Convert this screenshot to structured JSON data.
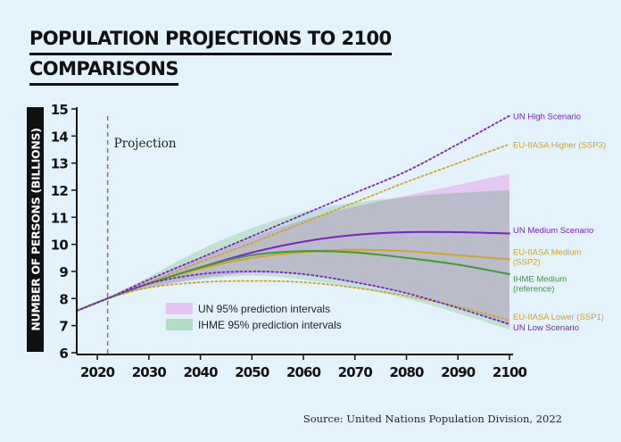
{
  "title_lines": [
    "POPULATION PROJECTIONS TO 2100",
    "COMPARISONS"
  ],
  "source": "Source: United Nations Population Division, 2022",
  "chart_data": {
    "type": "line",
    "ylabel": "NUMBER OF PERSONS (BILLIONS)",
    "xlabel": "",
    "xlim": [
      2016,
      2100
    ],
    "ylim": [
      6,
      15
    ],
    "x_ticks": [
      2020,
      2030,
      2040,
      2050,
      2060,
      2070,
      2080,
      2090,
      2100
    ],
    "y_ticks": [
      6,
      7,
      8,
      9,
      10,
      11,
      12,
      13,
      14,
      15
    ],
    "projection_year": 2022,
    "projection_label": "Projection",
    "grid": false,
    "bands": [
      {
        "name": "UN 95% prediction intervals",
        "color": "#e6c2f0",
        "x": [
          2016,
          2022,
          2030,
          2040,
          2050,
          2060,
          2070,
          2080,
          2090,
          2100
        ],
        "upper": [
          7.55,
          8.05,
          8.7,
          9.5,
          10.25,
          10.9,
          11.4,
          11.8,
          12.2,
          12.6
        ],
        "lower": [
          7.55,
          8.0,
          8.4,
          8.75,
          8.95,
          8.9,
          8.6,
          8.2,
          7.7,
          7.0
        ]
      },
      {
        "name": "IHME 95% prediction intervals",
        "color": "#b4dcc4",
        "x": [
          2016,
          2022,
          2030,
          2040,
          2050,
          2060,
          2070,
          2080,
          2090,
          2100
        ],
        "upper": [
          7.55,
          8.05,
          8.8,
          9.8,
          10.6,
          11.2,
          11.55,
          11.75,
          11.9,
          12.0
        ],
        "lower": [
          7.55,
          8.0,
          8.4,
          8.7,
          8.85,
          8.7,
          8.4,
          8.0,
          7.45,
          6.85
        ]
      }
    ],
    "series": [
      {
        "name": "UN High Scenario",
        "color": "#7a22c8",
        "dashed": true,
        "x": [
          2016,
          2022,
          2030,
          2040,
          2050,
          2060,
          2070,
          2080,
          2090,
          2100
        ],
        "y": [
          7.55,
          8.0,
          8.7,
          9.5,
          10.3,
          11.1,
          11.9,
          12.7,
          13.7,
          14.75
        ]
      },
      {
        "name": "EU-IIASA Higher (SSP3)",
        "color": "#cfa42a",
        "dashed": true,
        "x": [
          2016,
          2022,
          2030,
          2040,
          2050,
          2060,
          2070,
          2080,
          2090,
          2100
        ],
        "y": [
          7.55,
          8.0,
          8.6,
          9.35,
          10.05,
          10.8,
          11.55,
          12.3,
          13.0,
          13.7
        ]
      },
      {
        "name": "UN Medium Scenario",
        "color": "#7a22c8",
        "dashed": false,
        "x": [
          2016,
          2022,
          2030,
          2040,
          2050,
          2060,
          2070,
          2080,
          2090,
          2100
        ],
        "y": [
          7.55,
          8.0,
          8.55,
          9.15,
          9.7,
          10.1,
          10.35,
          10.45,
          10.45,
          10.4
        ]
      },
      {
        "name": "EU-IIASA Medium (SSP2)",
        "color": "#cfa42a",
        "dashed": false,
        "x": [
          2016,
          2022,
          2030,
          2040,
          2050,
          2060,
          2070,
          2080,
          2090,
          2100
        ],
        "y": [
          7.55,
          8.0,
          8.55,
          9.1,
          9.5,
          9.72,
          9.8,
          9.75,
          9.6,
          9.45
        ]
      },
      {
        "name": "IHME Medium (reference)",
        "color": "#3f9a38",
        "dashed": false,
        "x": [
          2016,
          2022,
          2030,
          2040,
          2050,
          2060,
          2070,
          2080,
          2090,
          2100
        ],
        "y": [
          7.55,
          8.0,
          8.55,
          9.15,
          9.6,
          9.75,
          9.7,
          9.5,
          9.25,
          8.9
        ]
      },
      {
        "name": "EU-IIASA Lower (SSP1)",
        "color": "#cfa42a",
        "dashed": true,
        "x": [
          2016,
          2022,
          2030,
          2040,
          2050,
          2060,
          2070,
          2080,
          2090,
          2100
        ],
        "y": [
          7.55,
          8.0,
          8.4,
          8.6,
          8.65,
          8.6,
          8.4,
          8.1,
          7.7,
          7.2
        ]
      },
      {
        "name": "UN Low Scenario",
        "color": "#7a22c8",
        "dashed": true,
        "x": [
          2016,
          2022,
          2030,
          2040,
          2050,
          2060,
          2070,
          2080,
          2090,
          2100
        ],
        "y": [
          7.55,
          8.0,
          8.55,
          8.9,
          9.0,
          8.9,
          8.6,
          8.2,
          7.65,
          7.05
        ]
      }
    ],
    "end_labels": [
      {
        "series": 0,
        "lines": [
          "UN High Scenario"
        ],
        "color": "#7a22c8",
        "y": 14.75
      },
      {
        "series": 1,
        "lines": [
          "EU-IIASA Higher (SSP3)"
        ],
        "color": "#cfa42a",
        "y": 13.7
      },
      {
        "series": 2,
        "lines": [
          "UN Medium Scenario"
        ],
        "color": "#7a22c8",
        "y": 10.55
      },
      {
        "series": 3,
        "lines": [
          "EU-IIASA Medium",
          "(SSP2)"
        ],
        "color": "#cfa42a",
        "y": 9.75
      },
      {
        "series": 4,
        "lines": [
          "IHME Medium",
          "(reference)"
        ],
        "color": "#3f9a38",
        "y": 8.75
      },
      {
        "series": 5,
        "lines": [
          "EU-IIASA Lower (SSP1)"
        ],
        "color": "#cfa42a",
        "y": 7.35
      },
      {
        "series": 6,
        "lines": [
          "UN Low Scenario"
        ],
        "color": "#7a22c8",
        "y": 6.95
      }
    ],
    "legend": {
      "placement": "bottom-left",
      "items": [
        {
          "label": "UN 95% prediction intervals",
          "color": "#e6c2f0"
        },
        {
          "label": "IHME 95% prediction intervals",
          "color": "#b4dcc4"
        }
      ]
    }
  }
}
